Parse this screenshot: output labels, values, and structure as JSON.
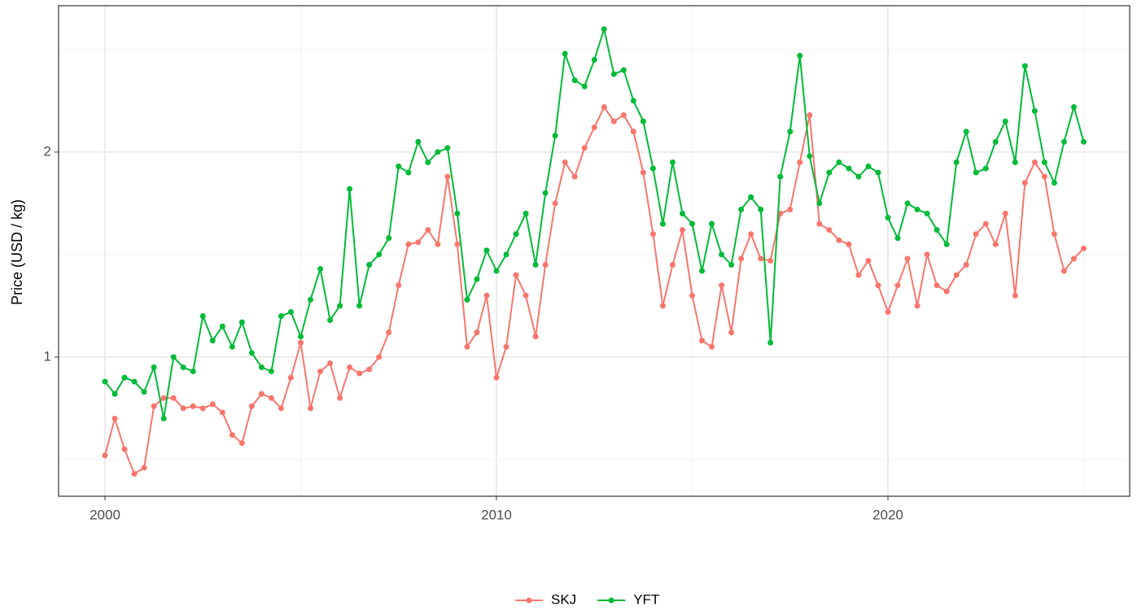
{
  "chart_data": {
    "type": "line",
    "y_label": "Price (USD / kg)",
    "x": [
      2000,
      2000.25,
      2000.5,
      2000.75,
      2001,
      2001.25,
      2001.5,
      2001.75,
      2002,
      2002.25,
      2002.5,
      2002.75,
      2003,
      2003.25,
      2003.5,
      2003.75,
      2004,
      2004.25,
      2004.5,
      2004.75,
      2005,
      2005.25,
      2005.5,
      2005.75,
      2006,
      2006.25,
      2006.5,
      2006.75,
      2007,
      2007.25,
      2007.5,
      2007.75,
      2008,
      2008.25,
      2008.5,
      2008.75,
      2009,
      2009.25,
      2009.5,
      2009.75,
      2010,
      2010.25,
      2010.5,
      2010.75,
      2011,
      2011.25,
      2011.5,
      2011.75,
      2012,
      2012.25,
      2012.5,
      2012.75,
      2013,
      2013.25,
      2013.5,
      2013.75,
      2014,
      2014.25,
      2014.5,
      2014.75,
      2015,
      2015.25,
      2015.5,
      2015.75,
      2016,
      2016.25,
      2016.5,
      2016.75,
      2017,
      2017.25,
      2017.5,
      2017.75,
      2018,
      2018.25,
      2018.5,
      2018.75,
      2019,
      2019.25,
      2019.5,
      2019.75,
      2020,
      2020.25,
      2020.5,
      2020.75,
      2021,
      2021.25,
      2021.5,
      2021.75,
      2022,
      2022.25,
      2022.5,
      2022.75,
      2023,
      2023.25,
      2023.5,
      2023.75,
      2024,
      2024.25,
      2024.5,
      2024.75,
      2025
    ],
    "series": [
      {
        "name": "SKJ",
        "color": "#F8766D",
        "values": [
          0.52,
          0.7,
          0.55,
          0.43,
          0.46,
          0.76,
          0.8,
          0.8,
          0.75,
          0.76,
          0.75,
          0.77,
          0.73,
          0.62,
          0.58,
          0.76,
          0.82,
          0.8,
          0.75,
          0.9,
          1.07,
          0.75,
          0.93,
          0.97,
          0.8,
          0.95,
          0.92,
          0.94,
          1.0,
          1.12,
          1.35,
          1.55,
          1.56,
          1.62,
          1.55,
          1.88,
          1.55,
          1.05,
          1.12,
          1.3,
          0.9,
          1.05,
          1.4,
          1.3,
          1.1,
          1.45,
          1.75,
          1.95,
          1.88,
          2.02,
          2.12,
          2.22,
          2.15,
          2.18,
          2.1,
          1.9,
          1.6,
          1.25,
          1.45,
          1.62,
          1.3,
          1.08,
          1.05,
          1.35,
          1.12,
          1.48,
          1.6,
          1.48,
          1.47,
          1.7,
          1.72,
          1.95,
          2.18,
          1.65,
          1.62,
          1.57,
          1.55,
          1.4,
          1.47,
          1.35,
          1.22,
          1.35,
          1.48,
          1.25,
          1.5,
          1.35,
          1.32,
          1.4,
          1.45,
          1.6,
          1.65,
          1.55,
          1.7,
          1.3,
          1.85,
          1.95,
          1.88,
          1.6,
          1.42,
          1.48,
          1.53
        ]
      },
      {
        "name": "YFT",
        "color": "#00BA38",
        "values": [
          0.88,
          0.82,
          0.9,
          0.88,
          0.83,
          0.95,
          0.7,
          1.0,
          0.95,
          0.93,
          1.2,
          1.08,
          1.15,
          1.05,
          1.17,
          1.02,
          0.95,
          0.93,
          1.2,
          1.22,
          1.1,
          1.28,
          1.43,
          1.18,
          1.25,
          1.82,
          1.25,
          1.45,
          1.5,
          1.58,
          1.93,
          1.9,
          2.05,
          1.95,
          2.0,
          2.02,
          1.7,
          1.28,
          1.38,
          1.52,
          1.42,
          1.5,
          1.6,
          1.7,
          1.45,
          1.8,
          2.08,
          2.48,
          2.35,
          2.32,
          2.45,
          2.6,
          2.38,
          2.4,
          2.25,
          2.15,
          1.92,
          1.65,
          1.95,
          1.7,
          1.65,
          1.42,
          1.65,
          1.5,
          1.45,
          1.72,
          1.78,
          1.72,
          1.07,
          1.88,
          2.1,
          2.47,
          1.98,
          1.75,
          1.9,
          1.95,
          1.92,
          1.88,
          1.93,
          1.9,
          1.68,
          1.58,
          1.75,
          1.72,
          1.7,
          1.62,
          1.55,
          1.95,
          2.1,
          1.9,
          1.92,
          2.05,
          2.15,
          1.95,
          2.42,
          2.2,
          1.95,
          1.85,
          2.05,
          2.22,
          2.05
        ]
      }
    ],
    "xlim": [
      1998.815,
      2026.175
    ],
    "xticks": [
      2000,
      2010,
      2020
    ],
    "x_minor_grid": [
      2005,
      2015,
      2025
    ],
    "ylim": [
      0.321,
      2.714
    ],
    "yticks": [
      1,
      2
    ],
    "y_minor_grid": [
      0.5,
      1.5,
      2.5
    ],
    "grid": true,
    "legend": "bottom"
  }
}
